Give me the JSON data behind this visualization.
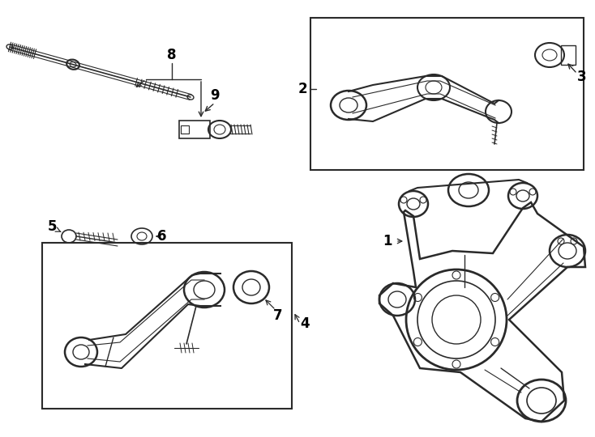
{
  "bg_color": "#ffffff",
  "line_color": "#2a2a2a",
  "fig_width": 7.34,
  "fig_height": 5.4,
  "dpi": 100
}
